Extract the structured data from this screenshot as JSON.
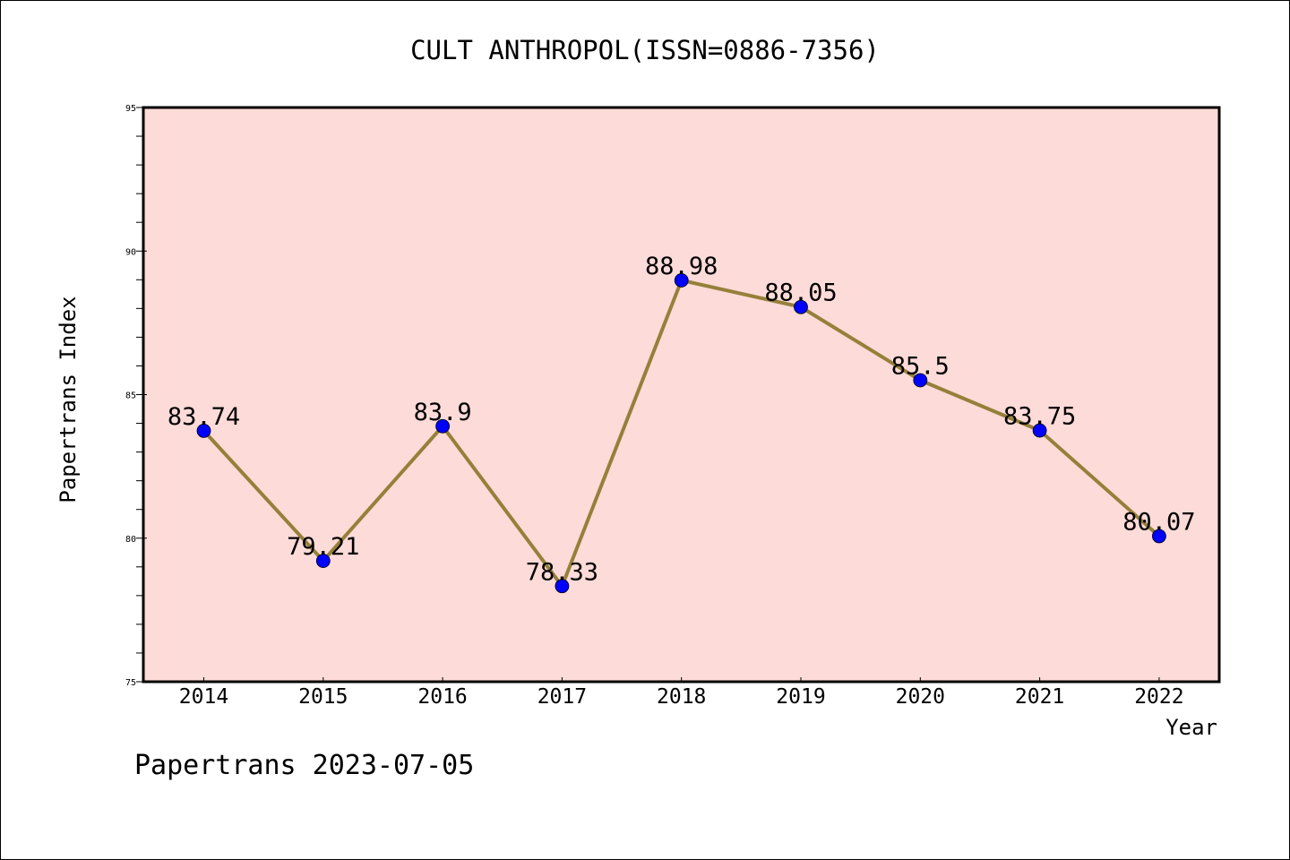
{
  "colors": {
    "plot_background": "#fddbd8",
    "line": "#95803a",
    "marker": "#0000ff",
    "axis": "#000000"
  },
  "chart_data": {
    "type": "line",
    "title": "CULT ANTHROPOL(ISSN=0886-7356)",
    "xlabel": "Year",
    "ylabel": "Papertrans Index",
    "footer": "Papertrans 2023-07-05",
    "x": [
      "2014",
      "2015",
      "2016",
      "2017",
      "2018",
      "2019",
      "2020",
      "2021",
      "2022"
    ],
    "series": [
      {
        "values": [
          83.74,
          79.21,
          83.9,
          78.33,
          88.98,
          88.05,
          85.5,
          83.75,
          80.07
        ],
        "point_labels": [
          "83.74",
          "79.21",
          "83.9",
          "78.33",
          "88.98",
          "88.05",
          "85.5",
          "83.75",
          "80.07"
        ]
      }
    ],
    "ylim": [
      75,
      95
    ],
    "yticks": [
      "75",
      "80",
      "85",
      "90",
      "95"
    ],
    "grid": false,
    "legend": "none"
  }
}
